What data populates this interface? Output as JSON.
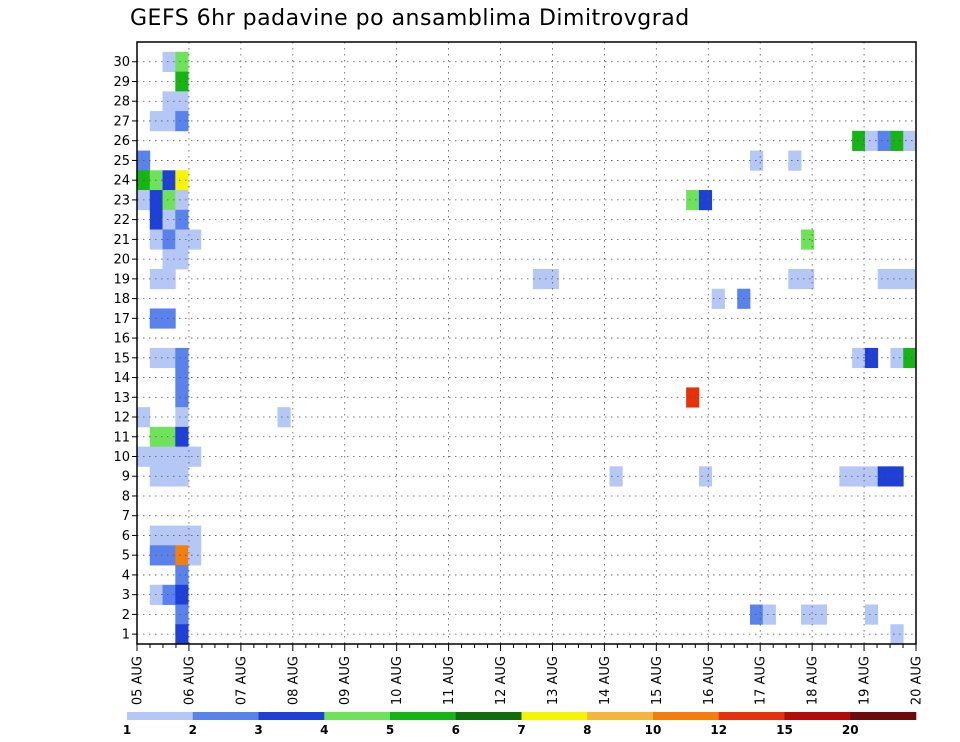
{
  "chart_data": {
    "type": "heatmap",
    "title": "GEFS 6hr padavine po ansamblima Dimitrovgrad",
    "xlabel": "",
    "ylabel": "",
    "x_tick_labels": [
      "05 AUG",
      "06 AUG",
      "07 AUG",
      "08 AUG",
      "09 AUG",
      "10 AUG",
      "11 AUG",
      "12 AUG",
      "13 AUG",
      "14 AUG",
      "15 AUG",
      "16 AUG",
      "17 AUG",
      "18 AUG",
      "19 AUG",
      "20 AUG"
    ],
    "y_tick_labels": [
      "1",
      "2",
      "3",
      "4",
      "5",
      "6",
      "7",
      "8",
      "9",
      "10",
      "11",
      "12",
      "13",
      "14",
      "15",
      "16",
      "17",
      "18",
      "19",
      "20",
      "21",
      "22",
      "23",
      "24",
      "25",
      "26",
      "27",
      "28",
      "29",
      "30"
    ],
    "y_range": [
      1,
      30
    ],
    "time_steps": 61,
    "grid": "dotted",
    "colorbar": {
      "labels": [
        "1",
        "2",
        "3",
        "4",
        "5",
        "6",
        "7",
        "8",
        "10",
        "12",
        "15",
        "20"
      ],
      "colors": [
        "#b4c7f5",
        "#5a82ed",
        "#1e40d6",
        "#6ee35a",
        "#16b414",
        "#0e6e0e",
        "#f5f500",
        "#f5b43c",
        "#f57d0a",
        "#e6320a",
        "#b40a0a",
        "#6e0a0a"
      ]
    },
    "cells": [
      [
        30,
        2,
        0
      ],
      [
        30,
        3,
        3
      ],
      [
        29,
        3,
        4
      ],
      [
        28,
        2,
        0
      ],
      [
        28,
        3,
        0
      ],
      [
        27,
        1,
        0
      ],
      [
        27,
        2,
        0
      ],
      [
        27,
        3,
        1
      ],
      [
        26,
        56,
        4
      ],
      [
        26,
        57,
        0
      ],
      [
        26,
        58,
        1
      ],
      [
        26,
        59,
        4
      ],
      [
        26,
        60,
        0
      ],
      [
        25,
        0,
        1
      ],
      [
        25,
        48,
        0
      ],
      [
        25,
        51,
        0
      ],
      [
        24,
        0,
        4
      ],
      [
        24,
        1,
        3
      ],
      [
        24,
        2,
        2
      ],
      [
        24,
        3,
        6
      ],
      [
        23,
        0,
        0
      ],
      [
        23,
        1,
        2
      ],
      [
        23,
        2,
        3
      ],
      [
        23,
        3,
        0
      ],
      [
        23,
        43,
        3
      ],
      [
        23,
        44,
        2
      ],
      [
        22,
        1,
        2
      ],
      [
        22,
        2,
        0
      ],
      [
        22,
        3,
        1
      ],
      [
        21,
        1,
        0
      ],
      [
        21,
        2,
        1
      ],
      [
        21,
        3,
        0
      ],
      [
        21,
        4,
        0
      ],
      [
        21,
        52,
        3
      ],
      [
        20,
        2,
        0
      ],
      [
        20,
        3,
        0
      ],
      [
        19,
        1,
        0
      ],
      [
        19,
        2,
        0
      ],
      [
        19,
        31,
        0
      ],
      [
        19,
        32,
        0
      ],
      [
        19,
        51,
        0
      ],
      [
        19,
        52,
        0
      ],
      [
        19,
        58,
        0
      ],
      [
        19,
        59,
        0
      ],
      [
        19,
        60,
        0
      ],
      [
        18,
        45,
        0
      ],
      [
        18,
        47,
        1
      ],
      [
        17,
        1,
        1
      ],
      [
        17,
        2,
        1
      ],
      [
        15,
        1,
        0
      ],
      [
        15,
        2,
        0
      ],
      [
        15,
        3,
        1
      ],
      [
        15,
        56,
        0
      ],
      [
        15,
        57,
        2
      ],
      [
        15,
        59,
        0
      ],
      [
        15,
        60,
        4
      ],
      [
        14,
        3,
        1
      ],
      [
        13,
        3,
        1
      ],
      [
        13,
        43,
        9
      ],
      [
        12,
        0,
        0
      ],
      [
        12,
        3,
        0
      ],
      [
        12,
        11,
        0
      ],
      [
        11,
        1,
        3
      ],
      [
        11,
        2,
        3
      ],
      [
        11,
        3,
        2
      ],
      [
        10,
        0,
        0
      ],
      [
        10,
        1,
        0
      ],
      [
        10,
        2,
        0
      ],
      [
        10,
        3,
        0
      ],
      [
        10,
        4,
        0
      ],
      [
        9,
        1,
        0
      ],
      [
        9,
        2,
        0
      ],
      [
        9,
        3,
        0
      ],
      [
        9,
        37,
        0
      ],
      [
        9,
        44,
        0
      ],
      [
        9,
        55,
        0
      ],
      [
        9,
        56,
        0
      ],
      [
        9,
        57,
        0
      ],
      [
        9,
        58,
        2
      ],
      [
        9,
        59,
        2
      ],
      [
        6,
        1,
        0
      ],
      [
        6,
        2,
        0
      ],
      [
        6,
        3,
        0
      ],
      [
        6,
        4,
        0
      ],
      [
        5,
        1,
        1
      ],
      [
        5,
        2,
        1
      ],
      [
        5,
        3,
        8
      ],
      [
        5,
        4,
        0
      ],
      [
        4,
        3,
        1
      ],
      [
        3,
        1,
        0
      ],
      [
        3,
        2,
        1
      ],
      [
        3,
        3,
        2
      ],
      [
        2,
        3,
        1
      ],
      [
        2,
        48,
        1
      ],
      [
        2,
        49,
        0
      ],
      [
        2,
        52,
        0
      ],
      [
        2,
        53,
        0
      ],
      [
        2,
        57,
        0
      ],
      [
        1,
        3,
        2
      ],
      [
        1,
        59,
        0
      ]
    ]
  }
}
